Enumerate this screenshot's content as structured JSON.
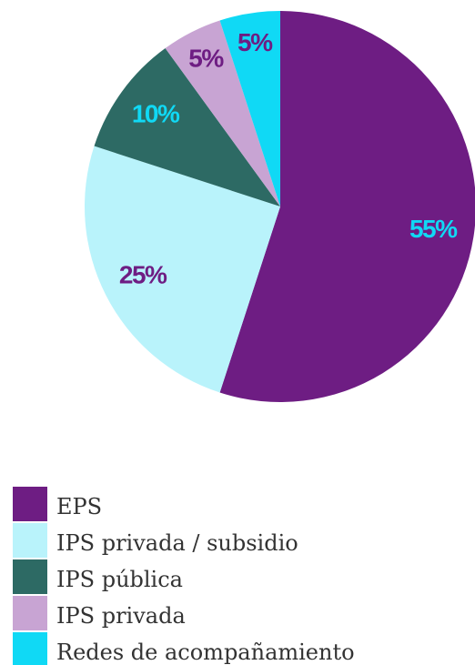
{
  "chart_data": {
    "type": "pie",
    "categories": [
      "EPS",
      "IPS privada / subsidio",
      "IPS pública",
      "IPS privada",
      "Redes de acompañamiento"
    ],
    "values": [
      55,
      25,
      10,
      5,
      5
    ],
    "value_labels": [
      "55%",
      "25%",
      "10%",
      "5%",
      "5%"
    ],
    "colors": [
      "#6e1d83",
      "#b9f3fb",
      "#2d6a64",
      "#c8a4d3",
      "#10d9f5"
    ],
    "label_colors": [
      "#10d9f5",
      "#6e1d83",
      "#10d9f5",
      "#6e1d83",
      "#6e1d83"
    ]
  }
}
